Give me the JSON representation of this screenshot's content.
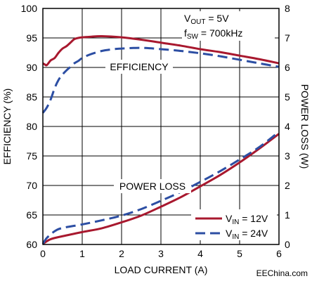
{
  "chart_data": {
    "type": "line",
    "xlabel": "LOAD CURRENT (A)",
    "ylabel_left": "EFFICIENCY (%)",
    "ylabel_right": "POWER LOSS (W)",
    "xlim": [
      0,
      6
    ],
    "ylim_left": [
      60,
      100
    ],
    "ylim_right": [
      0,
      8
    ],
    "x_ticks": [
      "0",
      "1",
      "2",
      "3",
      "4",
      "5",
      "6"
    ],
    "y_left_ticks": [
      "60",
      "65",
      "70",
      "75",
      "80",
      "85",
      "90",
      "95",
      "100"
    ],
    "y_right_ticks": [
      "0",
      "1",
      "2",
      "3",
      "4",
      "5",
      "6",
      "7",
      "8"
    ],
    "grid": true,
    "annotations": {
      "conditions_line1": "VOUT = 5V",
      "conditions_line2": "fSW = 700kHz",
      "efficiency_label": "EFFICIENCY",
      "power_loss_label": "POWER LOSS"
    },
    "legend": {
      "position": "bottom-right",
      "entries": [
        {
          "label": "VIN = 12V",
          "color": "#a8182e",
          "style": "solid"
        },
        {
          "label": "VIN = 24V",
          "color": "#2c4ea3",
          "style": "dashed"
        }
      ]
    },
    "series": [
      {
        "name": "VIN = 12V",
        "metric": "efficiency",
        "axis": "left",
        "color": "#a8182e",
        "style": "solid",
        "x": [
          0,
          0.05,
          0.1,
          0.2,
          0.3,
          0.4,
          0.5,
          0.6,
          0.7,
          0.8,
          0.9,
          1.0,
          1.2,
          1.5,
          2.0,
          2.5,
          3.0,
          3.5,
          4.0,
          4.5,
          5.0,
          5.5,
          6.0
        ],
        "y": [
          90.7,
          90.5,
          90.4,
          91.2,
          91.6,
          92.5,
          93.2,
          93.6,
          94.2,
          94.8,
          95.0,
          95.1,
          95.2,
          95.3,
          95.1,
          94.7,
          94.2,
          93.7,
          93.1,
          92.6,
          92.0,
          91.4,
          90.7
        ]
      },
      {
        "name": "VIN = 24V",
        "metric": "efficiency",
        "axis": "left",
        "color": "#2c4ea3",
        "style": "dashed",
        "x": [
          0,
          0.1,
          0.2,
          0.3,
          0.4,
          0.5,
          0.6,
          0.7,
          0.8,
          0.9,
          1.0,
          1.2,
          1.5,
          1.8,
          2.0,
          2.3,
          2.6,
          3.0,
          3.5,
          4.0,
          4.5,
          5.0,
          5.5,
          6.0
        ],
        "y": [
          82.3,
          83.2,
          84.6,
          86.5,
          87.9,
          88.8,
          89.5,
          90.1,
          90.7,
          91.1,
          91.6,
          92.2,
          92.8,
          93.1,
          93.2,
          93.3,
          93.3,
          93.1,
          92.8,
          92.4,
          91.9,
          91.3,
          90.7,
          90.1
        ]
      },
      {
        "name": "VIN = 12V",
        "metric": "power_loss",
        "axis": "right",
        "color": "#a8182e",
        "style": "solid",
        "x": [
          0,
          0.2,
          0.5,
          1.0,
          1.5,
          2.0,
          2.5,
          3.0,
          3.5,
          4.0,
          4.5,
          5.0,
          5.5,
          6.0
        ],
        "y": [
          0.02,
          0.18,
          0.28,
          0.42,
          0.55,
          0.75,
          0.98,
          1.28,
          1.6,
          1.97,
          2.35,
          2.78,
          3.25,
          3.75
        ]
      },
      {
        "name": "VIN = 24V",
        "metric": "power_loss",
        "axis": "right",
        "color": "#2c4ea3",
        "style": "dashed",
        "x": [
          0,
          0.1,
          0.3,
          0.5,
          1.0,
          1.5,
          2.0,
          2.5,
          3.0,
          3.5,
          4.0,
          4.5,
          5.0,
          5.5,
          6.0
        ],
        "y": [
          0.02,
          0.22,
          0.45,
          0.56,
          0.68,
          0.82,
          0.98,
          1.2,
          1.48,
          1.78,
          2.12,
          2.48,
          2.88,
          3.3,
          3.82
        ]
      }
    ]
  },
  "watermark": "EEChina.com"
}
